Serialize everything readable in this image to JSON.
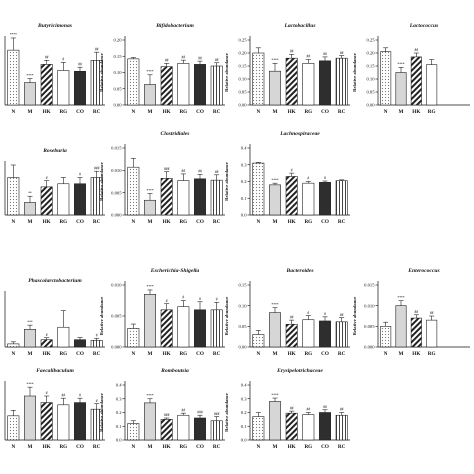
{
  "categories": [
    "N",
    "M",
    "HK",
    "RG",
    "CO",
    "RC"
  ],
  "ylabel": "Relative abundance",
  "chart_data": [
    {
      "type": "bar",
      "title": "Butyricimonas",
      "categories": [
        "N",
        "M",
        "HK",
        "RG",
        "CO",
        "RC"
      ],
      "values": [
        0.135,
        0.055,
        0.1,
        0.085,
        0.083,
        0.11
      ],
      "errors": [
        0.03,
        0.01,
        0.01,
        0.02,
        0.01,
        0.02
      ],
      "sig": [
        "****",
        "****",
        "##",
        "#",
        "##",
        "##"
      ],
      "ylim": [
        0,
        0.16
      ],
      "ticks": [],
      "ylabel": "",
      "patterns": [
        "dots",
        "light",
        "hatch",
        "white",
        "dark",
        "vert"
      ]
    },
    {
      "type": "bar",
      "title": "Bifidobacterium",
      "categories": [
        "N",
        "M",
        "HK",
        "RG",
        "CO",
        "RC"
      ],
      "values": [
        0.142,
        0.063,
        0.118,
        0.128,
        0.125,
        0.12
      ],
      "errors": [
        0.004,
        0.03,
        0.01,
        0.01,
        0.01,
        0.01
      ],
      "sig": [
        "",
        "****",
        "##",
        "##",
        "##",
        "##"
      ],
      "ylim": [
        0,
        0.2
      ],
      "ticks": [
        "0.00",
        "0.05",
        "0.10",
        "0.15",
        "0.20"
      ],
      "ylabel": "Relative abundance",
      "patterns": [
        "dots",
        "light",
        "hatch",
        "white",
        "dark",
        "vert"
      ]
    },
    {
      "type": "bar",
      "title": "Lactobacillus",
      "categories": [
        "N",
        "M",
        "HK",
        "RG",
        "CO",
        "RC"
      ],
      "values": [
        0.2,
        0.13,
        0.18,
        0.16,
        0.17,
        0.18
      ],
      "errors": [
        0.02,
        0.03,
        0.015,
        0.015,
        0.015,
        0.01
      ],
      "sig": [
        "",
        "****",
        "##",
        "##",
        "##",
        "##"
      ],
      "ylim": [
        0,
        0.25
      ],
      "ticks": [
        "0.00",
        "0.05",
        "0.10",
        "0.15",
        "0.20",
        "0.25"
      ],
      "ylabel": "Relative abundance",
      "patterns": [
        "dots",
        "light",
        "hatch",
        "white",
        "dark",
        "vert"
      ]
    },
    {
      "type": "bar",
      "title": "Lactococcus",
      "categories": [
        "N",
        "M",
        "HK",
        "RG"
      ],
      "values": [
        0.205,
        0.125,
        0.185,
        0.155
      ],
      "errors": [
        0.015,
        0.02,
        0.015,
        0.02
      ],
      "sig": [
        "",
        "****",
        "##",
        ""
      ],
      "ylim": [
        0,
        0.25
      ],
      "ticks": [
        "0.00",
        "0.05",
        "0.10",
        "0.15",
        "0.20",
        "0.25"
      ],
      "ylabel": "Relative abundance",
      "patterns": [
        "dots",
        "light",
        "hatch",
        "white"
      ]
    },
    {
      "type": "bar",
      "title": "Roseburia",
      "categories": [
        "N",
        "M",
        "HK",
        "RG",
        "CO",
        "RC"
      ],
      "values": [
        0.012,
        0.004,
        0.009,
        0.01,
        0.01,
        0.012
      ],
      "errors": [
        0.004,
        0.002,
        0.002,
        0.002,
        0.002,
        0.002
      ],
      "sig": [
        "",
        "**",
        "#",
        "",
        "#",
        "###"
      ],
      "ylim": [
        0,
        0.016
      ],
      "ticks": [],
      "ylabel": "",
      "patterns": [
        "dots",
        "light",
        "hatch",
        "white",
        "dark",
        "vert"
      ]
    },
    {
      "type": "bar",
      "title": "Clostridiales",
      "categories": [
        "N",
        "M",
        "HK",
        "RG",
        "CO",
        "RC"
      ],
      "values": [
        0.0107,
        0.0033,
        0.0082,
        0.0077,
        0.0081,
        0.0078
      ],
      "errors": [
        0.002,
        0.0015,
        0.0015,
        0.0015,
        0.001,
        0.0012
      ],
      "sig": [
        "",
        "****",
        "###",
        "##",
        "##",
        "##"
      ],
      "ylim": [
        0,
        0.015
      ],
      "ticks": [
        "0.000",
        "0.005",
        "0.010",
        "0.015"
      ],
      "ylabel": "Relative abundance",
      "patterns": [
        "dots",
        "light",
        "hatch",
        "white",
        "dark",
        "vert"
      ]
    },
    {
      "type": "bar",
      "title": "Lachnospiraceae",
      "categories": [
        "N",
        "M",
        "HK",
        "RG",
        "CO",
        "RC"
      ],
      "values": [
        0.31,
        0.18,
        0.23,
        0.19,
        0.195,
        0.205
      ],
      "errors": [
        0.004,
        0.01,
        0.02,
        0.01,
        0.008,
        0.005
      ],
      "sig": [
        "",
        "****",
        "#",
        "#",
        "#",
        ""
      ],
      "ylim": [
        0,
        0.4
      ],
      "ticks": [
        "0.0",
        "0.1",
        "0.2",
        "0.3",
        "0.4"
      ],
      "ylabel": "Relative abundance",
      "patterns": [
        "dots",
        "light",
        "hatch",
        "white",
        "dark",
        "vert"
      ]
    },
    {
      "type": "bar",
      "title": "Phascolarctobacterium",
      "categories": [
        "N",
        "M",
        "HK",
        "RG",
        "CO",
        "RC"
      ],
      "values": [
        0.0015,
        0.0085,
        0.0035,
        0.0095,
        0.0035,
        0.0032
      ],
      "errors": [
        0.001,
        0.002,
        0.001,
        0.008,
        0.001,
        0.001
      ],
      "sig": [
        "",
        "***",
        "#",
        "",
        "",
        "#"
      ],
      "ylim": [
        0,
        0.025
      ],
      "ticks": [],
      "ylabel": "",
      "patterns": [
        "dots",
        "light",
        "hatch",
        "white",
        "dark",
        "vert"
      ]
    },
    {
      "type": "bar",
      "title": "Escherichia-Shigella",
      "categories": [
        "N",
        "M",
        "HK",
        "RG",
        "CO",
        "RC"
      ],
      "values": [
        0.003,
        0.0085,
        0.006,
        0.0065,
        0.006,
        0.006
      ],
      "errors": [
        0.0007,
        0.0007,
        0.001,
        0.001,
        0.0013,
        0.0012
      ],
      "sig": [
        "",
        "****",
        "#",
        "#",
        "#",
        "#"
      ],
      "ylim": [
        0,
        0.01
      ],
      "ticks": [
        "0.000",
        "0.005",
        "0.010"
      ],
      "ylabel": "Relative abundance",
      "patterns": [
        "dots",
        "light",
        "hatch",
        "white",
        "dark",
        "vert"
      ]
    },
    {
      "type": "bar",
      "title": "Bacteroides",
      "categories": [
        "N",
        "M",
        "HK",
        "RG",
        "CO",
        "RC"
      ],
      "values": [
        0.03,
        0.083,
        0.055,
        0.066,
        0.063,
        0.061
      ],
      "errors": [
        0.01,
        0.012,
        0.01,
        0.01,
        0.01,
        0.01
      ],
      "sig": [
        "",
        "****",
        "##",
        "#",
        "#",
        "##"
      ],
      "ylim": [
        0,
        0.15
      ],
      "ticks": [
        "0.00",
        "0.05",
        "0.10",
        "0.15"
      ],
      "ylabel": "Relative abundance",
      "patterns": [
        "dots",
        "light",
        "hatch",
        "white",
        "dark",
        "vert"
      ]
    },
    {
      "type": "bar",
      "title": "Enterococcus",
      "categories": [
        "N",
        "M",
        "HK",
        "RG"
      ],
      "values": [
        0.005,
        0.01,
        0.007,
        0.0065
      ],
      "errors": [
        0.001,
        0.0012,
        0.0008,
        0.001
      ],
      "sig": [
        "",
        "****",
        "##",
        "##"
      ],
      "ylim": [
        0,
        0.015
      ],
      "ticks": [
        "0.000",
        "0.005",
        "0.010",
        "0.015"
      ],
      "ylabel": "Relative abundance",
      "patterns": [
        "dots",
        "light",
        "hatch",
        "white"
      ]
    },
    {
      "type": "bar",
      "title": "Faecalibaculum",
      "categories": [
        "N",
        "M",
        "HK",
        "RG",
        "CO",
        "RC"
      ],
      "values": [
        0.022,
        0.04,
        0.034,
        0.032,
        0.034,
        0.028
      ],
      "errors": [
        0.005,
        0.008,
        0.006,
        0.006,
        0.004,
        0.005
      ],
      "sig": [
        "",
        "****",
        "#",
        "##",
        "#",
        "#"
      ],
      "ylim": [
        0,
        0.05
      ],
      "ticks": [],
      "ylabel": "",
      "patterns": [
        "dots",
        "light",
        "hatch",
        "white",
        "dark",
        "vert"
      ]
    },
    {
      "type": "bar",
      "title": "Romboutsia",
      "categories": [
        "N",
        "M",
        "HK",
        "RG",
        "CO",
        "RC"
      ],
      "values": [
        0.12,
        0.27,
        0.15,
        0.18,
        0.16,
        0.14
      ],
      "errors": [
        0.02,
        0.03,
        0.01,
        0.015,
        0.02,
        0.03
      ],
      "sig": [
        "",
        "****",
        "###",
        "##",
        "###",
        "###"
      ],
      "ylim": [
        0,
        0.4
      ],
      "ticks": [
        "0.0",
        "0.1",
        "0.2",
        "0.3",
        "0.4"
      ],
      "ylabel": "Relative abundance",
      "patterns": [
        "dots",
        "light",
        "hatch",
        "white",
        "dark",
        "vert"
      ]
    },
    {
      "type": "bar",
      "title": "Erysipelotrichaceae",
      "categories": [
        "N",
        "M",
        "HK",
        "RG",
        "CO",
        "RC"
      ],
      "values": [
        0.17,
        0.28,
        0.195,
        0.185,
        0.2,
        0.18
      ],
      "errors": [
        0.03,
        0.025,
        0.015,
        0.015,
        0.02,
        0.02
      ],
      "sig": [
        "",
        "****",
        "##",
        "##",
        "##",
        "##"
      ],
      "ylim": [
        0,
        0.4
      ],
      "ticks": [
        "0.0",
        "0.1",
        "0.2",
        "0.3",
        "0.4"
      ],
      "ylabel": "Relative abundance",
      "patterns": [
        "dots",
        "light",
        "hatch",
        "white",
        "dark",
        "vert"
      ]
    }
  ]
}
